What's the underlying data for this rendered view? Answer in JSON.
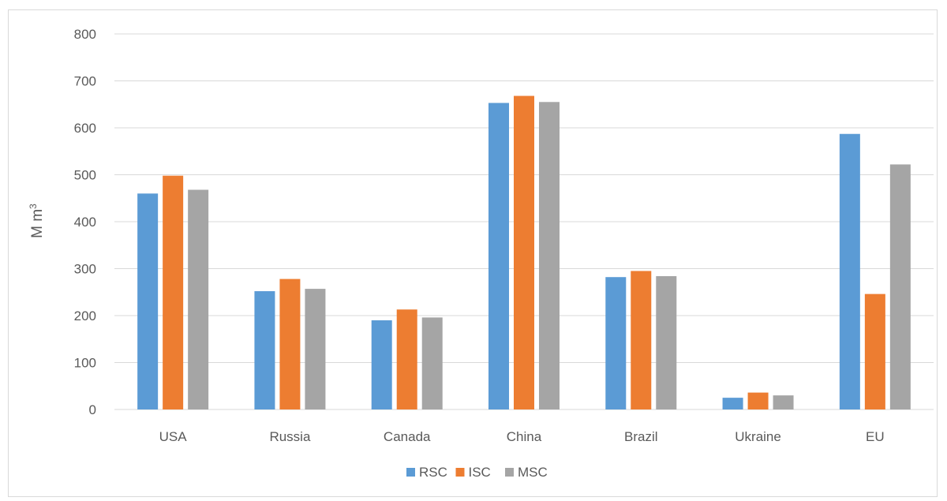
{
  "chart_data": {
    "type": "bar",
    "title": "",
    "xlabel": "",
    "ylabel": "M m",
    "ylabel_superscript": "3",
    "ylim": [
      0,
      800
    ],
    "yticks": [
      0,
      100,
      200,
      300,
      400,
      500,
      600,
      700,
      800
    ],
    "grid": "horizontal",
    "legend_position": "bottom",
    "categories": [
      "USA",
      "Russia",
      "Canada",
      "China",
      "Brazil",
      "Ukraine",
      "EU"
    ],
    "series": [
      {
        "name": "RSC",
        "color": "#5b9bd5",
        "values": [
          460,
          252,
          190,
          653,
          282,
          25,
          587
        ]
      },
      {
        "name": "ISC",
        "color": "#ed7d31",
        "values": [
          498,
          278,
          213,
          668,
          295,
          36,
          246
        ]
      },
      {
        "name": "MSC",
        "color": "#a5a5a5",
        "values": [
          468,
          257,
          196,
          655,
          284,
          30,
          522
        ]
      }
    ]
  }
}
